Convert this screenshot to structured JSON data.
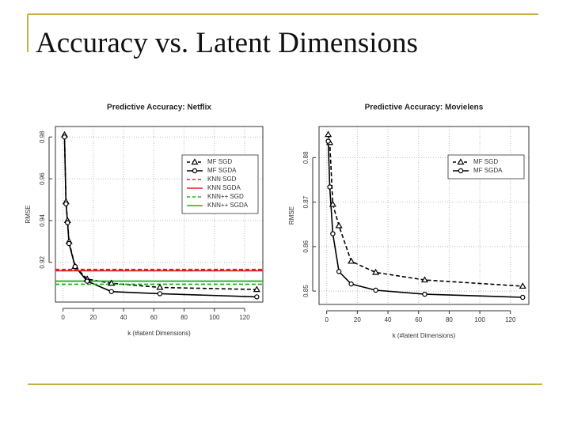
{
  "title": "Accuracy vs. Latent Dimensions",
  "chart_data": [
    {
      "type": "line",
      "title": "Predictive Accuracy: Netflix",
      "x_label": "k (#latent Dimensions)",
      "y_label": "RMSE",
      "x": [
        1,
        2,
        3,
        4,
        8,
        16,
        32,
        64,
        128
      ],
      "xlim": [
        -5,
        132
      ],
      "xticks": [
        0,
        20,
        40,
        60,
        80,
        100,
        120
      ],
      "ylim": [
        0.901,
        0.985
      ],
      "yticks": [
        0.92,
        0.94,
        0.96,
        0.98
      ],
      "grid": true,
      "legend": "upper right",
      "series": [
        {
          "name": "MF SGD",
          "color": "#000000",
          "marker": "triangle",
          "dash": true,
          "values": [
            0.981,
            0.949,
            0.94,
            0.93,
            0.918,
            0.912,
            0.91,
            0.908,
            0.907
          ]
        },
        {
          "name": "MF SGDA",
          "color": "#000000",
          "marker": "circle",
          "dash": false,
          "values": [
            0.98,
            0.948,
            0.939,
            0.929,
            0.918,
            0.911,
            0.906,
            0.905,
            0.9035
          ]
        },
        {
          "name": "KNN SGD",
          "color": "#e02020",
          "dash": true,
          "value": 0.9166
        },
        {
          "name": "KNN SGDA",
          "color": "#e02020",
          "dash": false,
          "value": 0.916
        },
        {
          "name": "KNN++ SGD",
          "color": "#20b020",
          "dash": true,
          "value": 0.9095
        },
        {
          "name": "KNN++ SGDA",
          "color": "#20b020",
          "dash": false,
          "value": 0.911
        }
      ]
    },
    {
      "type": "line",
      "title": "Predictive Accuracy: Movielens",
      "x_label": "k (#latent Dimensions)",
      "y_label": "RMSE",
      "x": [
        1,
        2,
        4,
        8,
        16,
        32,
        64,
        128
      ],
      "xlim": [
        -5,
        132
      ],
      "xticks": [
        0,
        20,
        40,
        60,
        80,
        100,
        120
      ],
      "ylim": [
        0.847,
        0.887
      ],
      "yticks": [
        0.85,
        0.86,
        0.87,
        0.88
      ],
      "grid": true,
      "legend": "upper right",
      "series": [
        {
          "name": "MF SGD",
          "color": "#000000",
          "marker": "triangle",
          "dash": true,
          "values": [
            0.8852,
            0.8834,
            0.8695,
            0.8647,
            0.8567,
            0.8542,
            0.8525,
            0.8511
          ]
        },
        {
          "name": "MF SGDA",
          "color": "#000000",
          "marker": "circle",
          "dash": false,
          "values": [
            0.8837,
            0.8734,
            0.8629,
            0.8544,
            0.8516,
            0.8502,
            0.8493,
            0.8486
          ]
        }
      ]
    }
  ]
}
